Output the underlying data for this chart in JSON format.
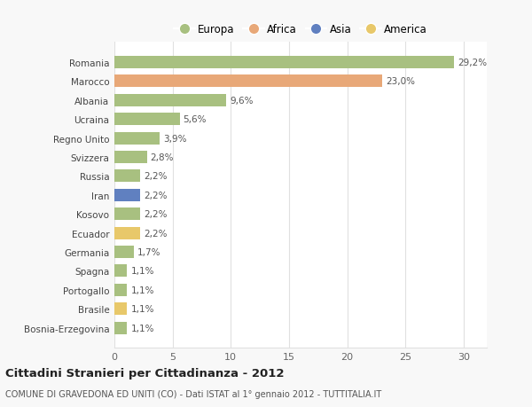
{
  "categories": [
    "Bosnia-Erzegovina",
    "Brasile",
    "Portogallo",
    "Spagna",
    "Germania",
    "Ecuador",
    "Kosovo",
    "Iran",
    "Russia",
    "Svizzera",
    "Regno Unito",
    "Ucraina",
    "Albania",
    "Marocco",
    "Romania"
  ],
  "values": [
    1.1,
    1.1,
    1.1,
    1.1,
    1.7,
    2.2,
    2.2,
    2.2,
    2.2,
    2.8,
    3.9,
    5.6,
    9.6,
    23.0,
    29.2
  ],
  "labels": [
    "1,1%",
    "1,1%",
    "1,1%",
    "1,1%",
    "1,7%",
    "2,2%",
    "2,2%",
    "2,2%",
    "2,2%",
    "2,8%",
    "3,9%",
    "5,6%",
    "9,6%",
    "23,0%",
    "29,2%"
  ],
  "colors": [
    "#a8c080",
    "#e8c86a",
    "#a8c080",
    "#a8c080",
    "#a8c080",
    "#e8c86a",
    "#a8c080",
    "#6080c0",
    "#a8c080",
    "#a8c080",
    "#a8c080",
    "#a8c080",
    "#a8c080",
    "#e8a878",
    "#a8c080"
  ],
  "legend_labels": [
    "Europa",
    "Africa",
    "Asia",
    "America"
  ],
  "legend_colors": [
    "#a8c080",
    "#e8a878",
    "#6080c0",
    "#e8c86a"
  ],
  "title": "Cittadini Stranieri per Cittadinanza - 2012",
  "subtitle": "COMUNE DI GRAVEDONA ED UNITI (CO) - Dati ISTAT al 1° gennaio 2012 - TUTTITALIA.IT",
  "xlim": [
    0,
    32
  ],
  "xticks": [
    0,
    5,
    10,
    15,
    20,
    25,
    30
  ],
  "background_color": "#f8f8f8",
  "bar_background": "#ffffff",
  "grid_color": "#e0e0e0"
}
